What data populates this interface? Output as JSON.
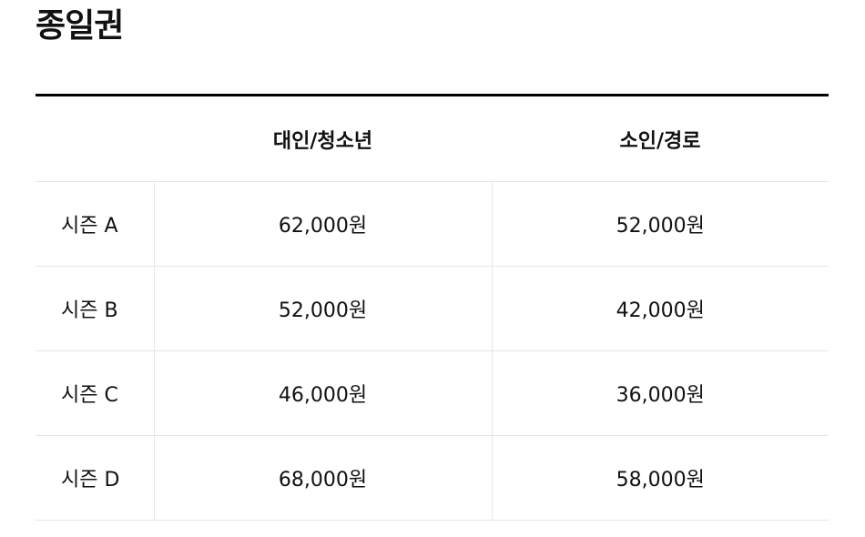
{
  "title": "종일권",
  "table": {
    "headers": [
      "",
      "대인/청소년",
      "소인/경로"
    ],
    "rows": [
      {
        "season": "시즌 A",
        "adult_youth": "62,000원",
        "child_senior": "52,000원"
      },
      {
        "season": "시즌 B",
        "adult_youth": "52,000원",
        "child_senior": "42,000원"
      },
      {
        "season": "시즌 C",
        "adult_youth": "46,000원",
        "child_senior": "36,000원"
      },
      {
        "season": "시즌 D",
        "adult_youth": "68,000원",
        "child_senior": "58,000원"
      }
    ]
  }
}
